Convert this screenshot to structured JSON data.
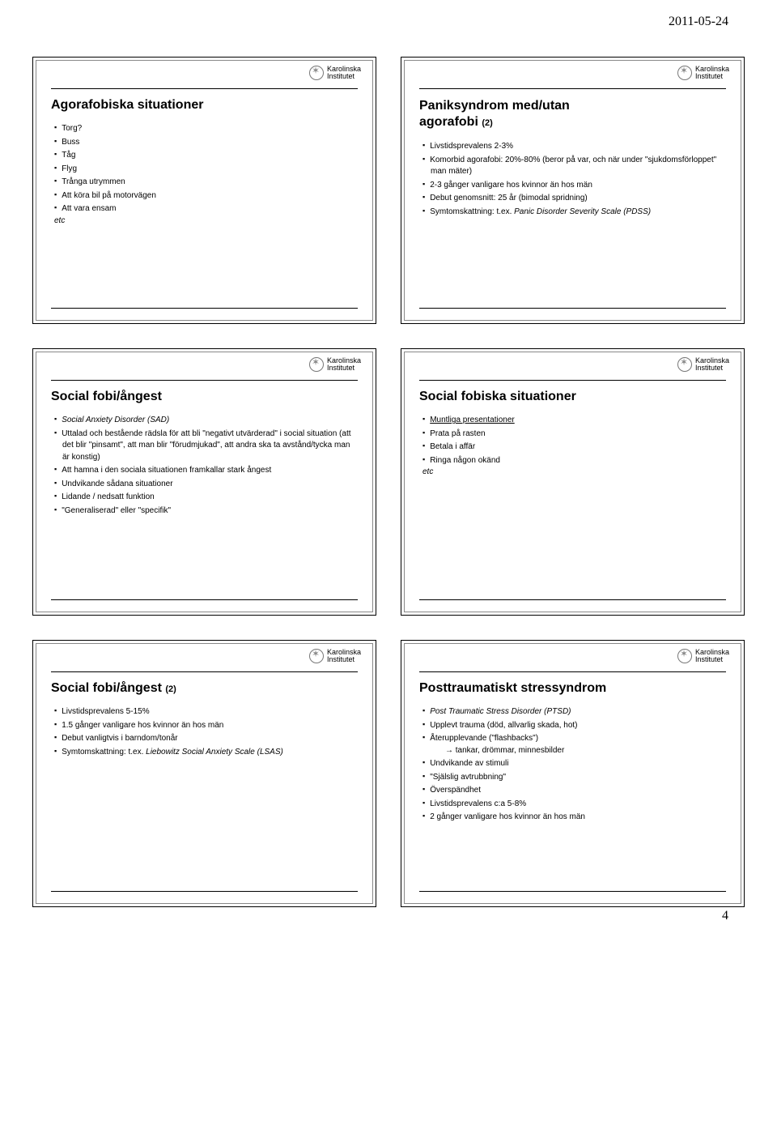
{
  "header": {
    "date": "2011-05-24"
  },
  "page": {
    "number": "4"
  },
  "logo": {
    "line1": "Karolinska",
    "line2": "Institutet"
  },
  "slides": [
    {
      "title": "Agorafobiska situationer",
      "items": [
        {
          "text": "Torg?"
        },
        {
          "text": "Buss"
        },
        {
          "text": "Tåg"
        },
        {
          "text": "Flyg"
        },
        {
          "text": "Trånga utrymmen"
        },
        {
          "text": "Att köra bil på motorvägen"
        },
        {
          "text": "Att vara ensam",
          "etc": "etc"
        }
      ]
    },
    {
      "title_l1": "Paniksyndrom med/utan",
      "title_l2_a": "agorafobi ",
      "title_l2_b": "(2)",
      "items": [
        {
          "text": "Livstidsprevalens 2-3%"
        },
        {
          "text": "Komorbid agorafobi: 20%-80% (beror på var, och när under \"sjukdomsförloppet\" man mäter)"
        },
        {
          "text": "2-3 gånger vanligare hos kvinnor än hos män"
        },
        {
          "text": "Debut genomsnitt: 25 år (bimodal spridning)"
        },
        {
          "text_a": "Symtomskattning: t.ex. ",
          "text_b": "Panic Disorder Severity Scale (PDSS)"
        }
      ]
    },
    {
      "title": "Social fobi/ångest",
      "items": [
        {
          "text": "Social Anxiety Disorder (SAD)",
          "italic": true
        },
        {
          "text": "Uttalad och bestående rädsla för att bli \"negativt utvärderad\" i social situation (att det blir \"pinsamt\", att man blir \"förudmjukad\", att andra ska ta avstånd/tycka man är konstig)"
        },
        {
          "text": "Att hamna i den sociala situationen framkallar stark ångest"
        },
        {
          "text": "Undvikande sådana situationer"
        },
        {
          "text": "Lidande / nedsatt funktion"
        },
        {
          "text": "\"Generaliserad\" eller \"specifik\""
        }
      ]
    },
    {
      "title": "Social fobiska situationer",
      "items": [
        {
          "text": "Muntliga presentationer",
          "underline": true
        },
        {
          "text": "Prata på rasten"
        },
        {
          "text": "Betala i affär"
        },
        {
          "text": "Ringa någon okänd",
          "etc": "etc"
        }
      ]
    },
    {
      "title_a": "Social fobi/ångest ",
      "title_b": "(2)",
      "items": [
        {
          "text": "Livstidsprevalens  5-15%"
        },
        {
          "text": "1.5 gånger vanligare hos kvinnor än hos män"
        },
        {
          "text": "Debut vanligtvis i barndom/tonår"
        },
        {
          "text_a": "Symtomskattning: t.ex. ",
          "text_b": "Liebowitz Social Anxiety Scale (LSAS)"
        }
      ]
    },
    {
      "title": "Posttraumatiskt stressyndrom",
      "items": [
        {
          "text": "Post Traumatic Stress Disorder (PTSD)",
          "italic": true
        },
        {
          "text": "Upplevt trauma (död, allvarlig skada, hot)"
        },
        {
          "text": "Återupplevande (\"flashbacks\")",
          "sub": "→ tankar, drömmar, minnesbilder"
        },
        {
          "text": "Undvikande av stimuli"
        },
        {
          "text": "\"Själslig avtrubbning\""
        },
        {
          "text": "Överspändhet"
        },
        {
          "text": "Livstidsprevalens c:a 5-8%"
        },
        {
          "text": "2 gånger vanligare hos kvinnor än hos män"
        }
      ]
    }
  ]
}
